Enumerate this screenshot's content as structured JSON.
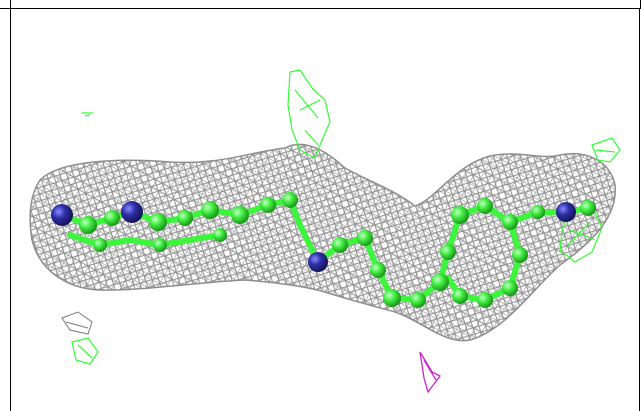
{
  "scene": {
    "subject": "electron-density-mesh-with-ball-and-stick-ligand",
    "colors": {
      "mesh": "#8a8a8a",
      "carbon": "#3cf53c",
      "nitrogen": "#2f2fa8",
      "difference_positive": "#33ff33",
      "difference_negative": "#cc22cc",
      "background": "#ffffff",
      "frame": "#000000"
    }
  }
}
